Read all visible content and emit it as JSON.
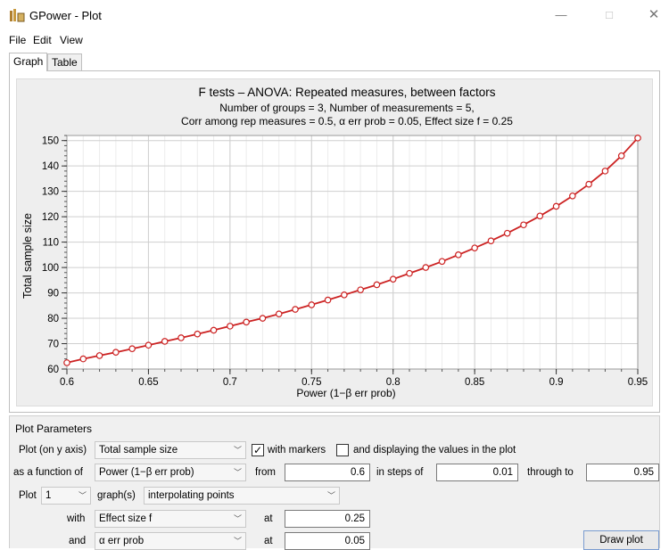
{
  "window": {
    "title": "GPower - Plot",
    "minimize": "—",
    "maximize": "□",
    "close": "✕"
  },
  "menu": [
    "File",
    "Edit",
    "View"
  ],
  "tabs": [
    {
      "label": "Graph",
      "active": true
    },
    {
      "label": "Table",
      "active": false
    }
  ],
  "chart_data": {
    "type": "line",
    "title": "F tests – ANOVA: Repeated measures, between factors",
    "subtitle_lines": [
      "Number of groups = 3, Number of measurements = 5,",
      "Corr among rep measures = 0.5, α err prob = 0.05, Effect size f = 0.25"
    ],
    "xlabel": "Power (1−β err prob)",
    "ylabel": "Total sample size",
    "xlim": [
      0.6,
      0.95
    ],
    "ylim": [
      60,
      152
    ],
    "xticks": [
      0.6,
      0.65,
      0.7,
      0.75,
      0.8,
      0.85,
      0.9,
      0.95
    ],
    "xtick_labels": [
      "0.6",
      "0.65",
      "0.7",
      "0.75",
      "0.8",
      "0.85",
      "0.9",
      "0.95"
    ],
    "yticks": [
      60,
      70,
      80,
      90,
      100,
      110,
      120,
      130,
      140,
      150
    ],
    "ytick_labels": [
      "60",
      "70",
      "80",
      "90",
      "100",
      "110",
      "120",
      "130",
      "140",
      "150"
    ],
    "grid": true,
    "markers": true,
    "line_color": "#cc2222",
    "x": [
      0.6,
      0.61,
      0.62,
      0.63,
      0.64,
      0.65,
      0.66,
      0.67,
      0.68,
      0.69,
      0.7,
      0.71,
      0.72,
      0.73,
      0.74,
      0.75,
      0.76,
      0.77,
      0.78,
      0.79,
      0.8,
      0.81,
      0.82,
      0.83,
      0.84,
      0.85,
      0.86,
      0.87,
      0.88,
      0.89,
      0.9,
      0.91,
      0.92,
      0.93,
      0.94,
      0.95
    ],
    "y": [
      62.5,
      64,
      65.3,
      66.6,
      68,
      69.4,
      70.9,
      72.3,
      73.8,
      75.3,
      76.9,
      78.5,
      80,
      81.7,
      83.5,
      85.3,
      87.2,
      89.2,
      91.2,
      93.2,
      95.4,
      97.7,
      100,
      102.4,
      105,
      107.7,
      110.5,
      113.5,
      116.8,
      120.3,
      124.1,
      128.2,
      132.8,
      138,
      144,
      151
    ]
  },
  "params": {
    "title": "Plot Parameters",
    "row1": {
      "label": "Plot (on y axis)",
      "select": "Total sample size",
      "with_markers_checked": true,
      "with_markers_label": "with markers",
      "display_values_checked": false,
      "display_values_label": "and displaying the values in the plot"
    },
    "row2": {
      "label": "as a function of",
      "select": "Power (1−β err prob)",
      "from_label": "from",
      "from_value": "0.6",
      "steps_label": "in steps of",
      "steps_value": "0.01",
      "through_label": "through to",
      "through_value": "0.95"
    },
    "row3": {
      "label": "Plot",
      "count": "1",
      "graphs_label": "graph(s)",
      "mode": "interpolating points"
    },
    "row4": {
      "label": "with",
      "select": "Effect size f",
      "at_label": "at",
      "value": "0.25"
    },
    "row5": {
      "label": "and",
      "select": "α err prob",
      "at_label": "at",
      "value": "0.05"
    },
    "draw_button": "Draw plot"
  }
}
